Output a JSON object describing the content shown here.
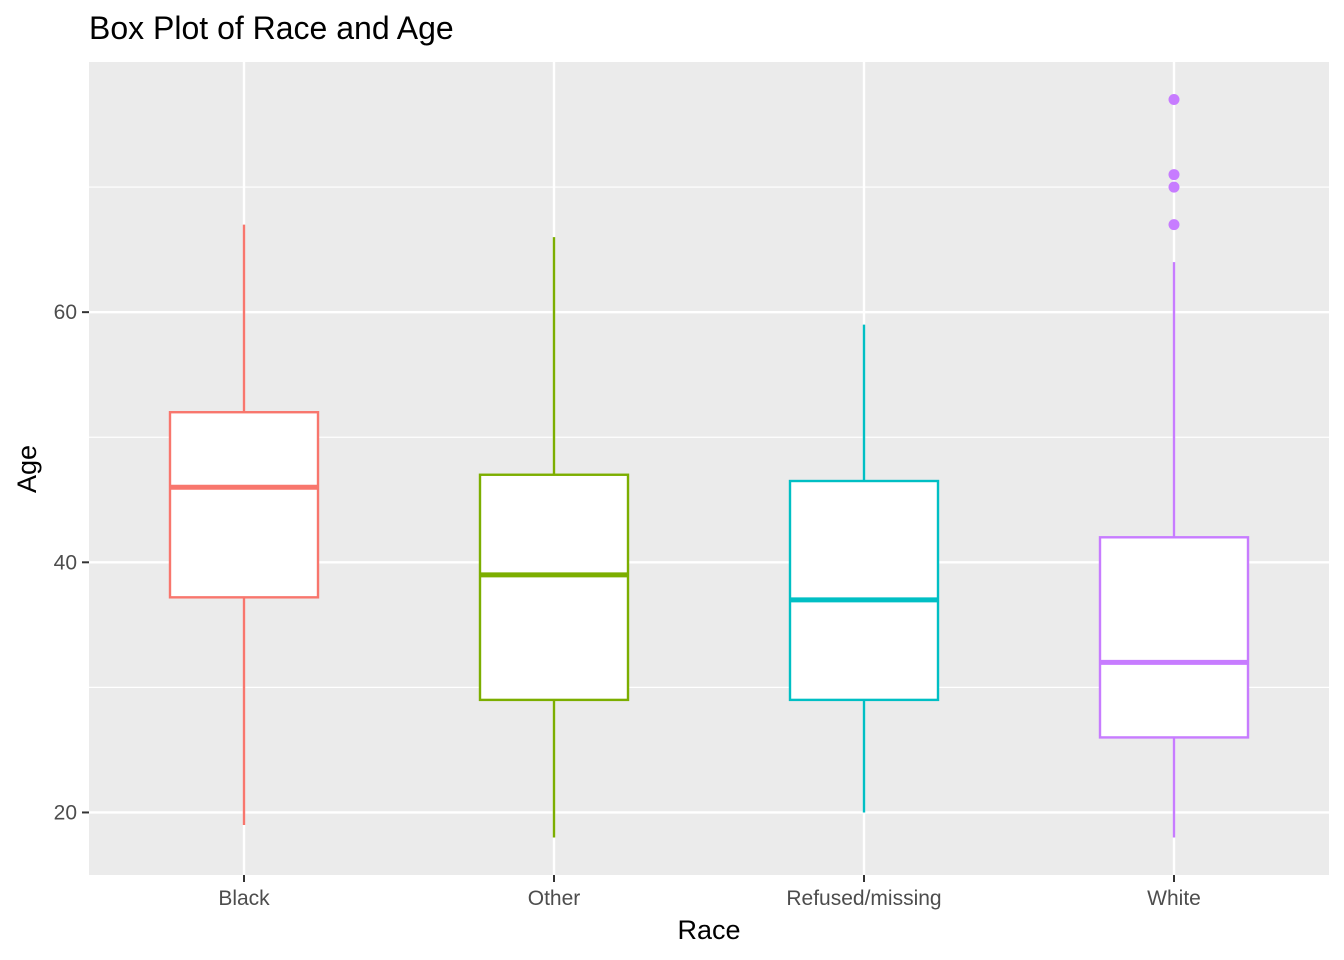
{
  "chart_data": {
    "type": "box",
    "title": "Box Plot of Race and Age",
    "xlabel": "Race",
    "ylabel": "Age",
    "ylim": [
      15,
      80
    ],
    "yticks": [
      20,
      40,
      60
    ],
    "grid": true,
    "categories": [
      "Black",
      "Other",
      "Refused/missing",
      "White"
    ],
    "boxes": [
      {
        "category": "Black",
        "color": "#F8766D",
        "whisker_low": 19,
        "q1": 37.2,
        "median": 46,
        "q3": 52,
        "whisker_high": 67,
        "outliers": []
      },
      {
        "category": "Other",
        "color": "#7CAE00",
        "whisker_low": 18,
        "q1": 29,
        "median": 39,
        "q3": 47,
        "whisker_high": 66,
        "outliers": []
      },
      {
        "category": "Refused/missing",
        "color": "#00BFC4",
        "whisker_low": 20,
        "q1": 29,
        "median": 37,
        "q3": 46.5,
        "whisker_high": 59,
        "outliers": []
      },
      {
        "category": "White",
        "color": "#C77CFF",
        "whisker_low": 18,
        "q1": 26,
        "median": 32,
        "q3": 42,
        "whisker_high": 64,
        "outliers": [
          67,
          70,
          71,
          77
        ]
      }
    ]
  }
}
